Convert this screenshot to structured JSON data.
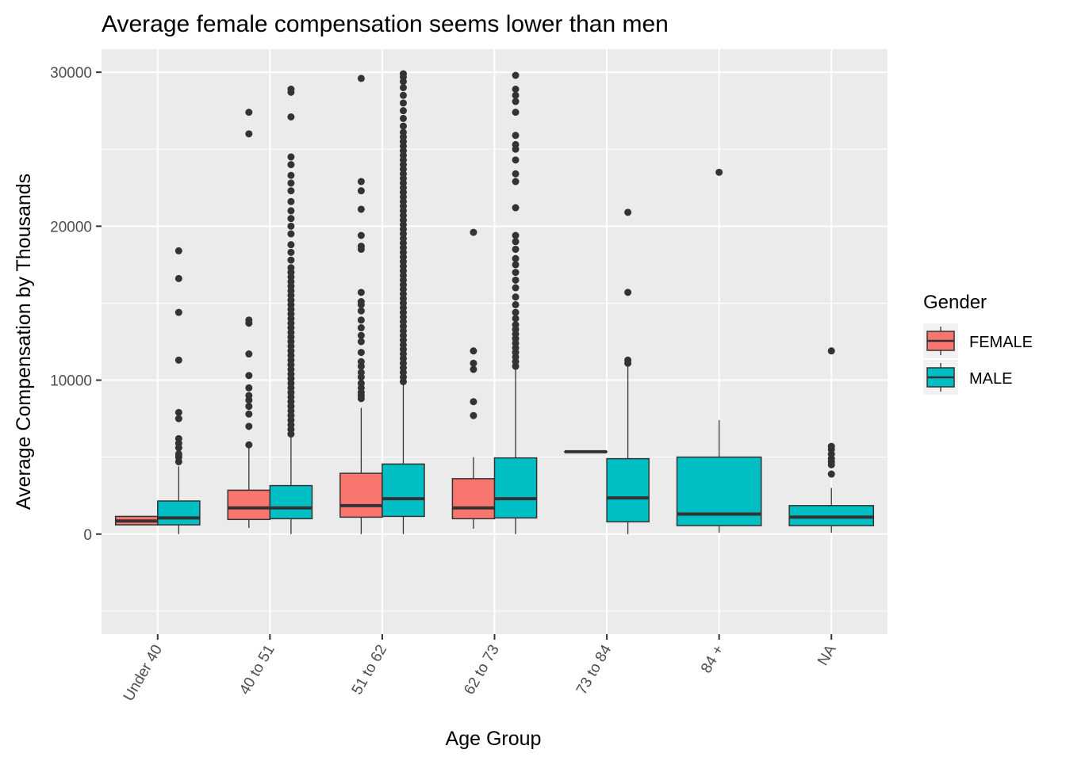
{
  "chart_data": {
    "type": "boxplot",
    "title": "Average female compensation seems lower than men",
    "xlabel": "Age Group",
    "ylabel": "Average Compensation by Thousands",
    "ylim": [
      -6500,
      31500
    ],
    "y_ticks": [
      0,
      10000,
      20000,
      30000
    ],
    "categories": [
      "Under 40",
      "40 to 51",
      "51 to 62",
      "62 to 73",
      "73 to 84",
      "84 +",
      "NA"
    ],
    "legend": {
      "title": "Gender",
      "position": "right",
      "items": [
        {
          "label": "FEMALE",
          "color": "#F8766D"
        },
        {
          "label": "MALE",
          "color": "#00BFC4"
        }
      ]
    },
    "grid": true,
    "panel_background": "#EBEBEB",
    "series": [
      {
        "name": "FEMALE",
        "color": "#F8766D",
        "boxes": [
          {
            "category": "Under 40",
            "whisker_low": 600,
            "q1": 600,
            "median": 850,
            "q3": 1150,
            "whisker_high": 1150,
            "outliers": []
          },
          {
            "category": "40 to 51",
            "whisker_low": 400,
            "q1": 950,
            "median": 1700,
            "q3": 2850,
            "whisker_high": 5700,
            "outliers": [
              5800,
              7000,
              7800,
              8300,
              8700,
              9000,
              9500,
              10300,
              11700,
              13700,
              13900,
              26000,
              27400
            ]
          },
          {
            "category": "51 to 62",
            "whisker_low": 0,
            "q1": 1100,
            "median": 1850,
            "q3": 3950,
            "whisker_high": 8200,
            "outliers": [
              8800,
              9000,
              9200,
              9500,
              9800,
              10200,
              10500,
              10900,
              11200,
              11800,
              12500,
              12900,
              13400,
              13900,
              14500,
              14900,
              15100,
              15700,
              18500,
              18700,
              19400,
              21100,
              22300,
              22900,
              29600
            ]
          },
          {
            "category": "62 to 73",
            "whisker_low": 350,
            "q1": 1000,
            "median": 1700,
            "q3": 3600,
            "whisker_high": 5000,
            "outliers": [
              7700,
              8600,
              10700,
              11100,
              11900,
              19600
            ]
          },
          {
            "category": "73 to 84",
            "whisker_low": 5350,
            "q1": 5350,
            "median": 5350,
            "q3": 5350,
            "whisker_high": 5350,
            "outliers": []
          }
        ]
      },
      {
        "name": "MALE",
        "color": "#00BFC4",
        "boxes": [
          {
            "category": "Under 40",
            "whisker_low": 0,
            "q1": 600,
            "median": 1050,
            "q3": 2150,
            "whisker_high": 4400,
            "outliers": [
              4700,
              5000,
              5200,
              5600,
              5900,
              6200,
              7500,
              7900,
              11300,
              14400,
              16600,
              18400
            ]
          },
          {
            "category": "40 to 51",
            "whisker_low": 0,
            "q1": 1000,
            "median": 1700,
            "q3": 3150,
            "whisker_high": 6300,
            "outliers": [
              6500,
              6800,
              7100,
              7400,
              7700,
              8000,
              8300,
              8600,
              8900,
              9200,
              9500,
              9800,
              10100,
              10400,
              10700,
              11000,
              11300,
              11600,
              11900,
              12200,
              12500,
              12800,
              13100,
              13400,
              13700,
              14000,
              14300,
              14600,
              14900,
              15200,
              15500,
              15800,
              16100,
              16400,
              16700,
              17000,
              17300,
              17800,
              18300,
              18800,
              19500,
              20000,
              20500,
              21000,
              21600,
              22300,
              22800,
              23300,
              24000,
              24500,
              27100,
              28700,
              28900
            ]
          },
          {
            "category": "51 to 62",
            "whisker_low": 0,
            "q1": 1150,
            "median": 2300,
            "q3": 4550,
            "whisker_high": 9700,
            "outliers": [
              9900,
              10200,
              10500,
              10800,
              11100,
              11400,
              11700,
              12000,
              12300,
              12600,
              12900,
              13200,
              13500,
              13800,
              14100,
              14400,
              14700,
              15000,
              15300,
              15600,
              15900,
              16200,
              16500,
              16800,
              17100,
              17400,
              17700,
              18000,
              18300,
              18600,
              18900,
              19200,
              19500,
              19800,
              20100,
              20400,
              20700,
              21000,
              21300,
              21600,
              21900,
              22200,
              22500,
              22800,
              23100,
              23400,
              23700,
              24000,
              24300,
              24600,
              24900,
              25200,
              25500,
              25800,
              26100,
              26500,
              27000,
              27500,
              28000,
              28500,
              29000,
              29400,
              29700,
              29900
            ]
          },
          {
            "category": "62 to 73",
            "whisker_low": 0,
            "q1": 1050,
            "median": 2300,
            "q3": 4950,
            "whisker_high": 10700,
            "outliers": [
              10900,
              11200,
              11500,
              11800,
              12100,
              12400,
              12700,
              13000,
              13300,
              13600,
              14000,
              14400,
              14900,
              15400,
              16000,
              16500,
              17000,
              17500,
              17900,
              18500,
              19000,
              19400,
              21200,
              22900,
              23400,
              24300,
              25000,
              25300,
              25900,
              27400,
              28100,
              28500,
              28900,
              29800
            ]
          },
          {
            "category": "73 to 84",
            "whisker_low": 0,
            "q1": 800,
            "median": 2350,
            "q3": 4900,
            "whisker_high": 11000,
            "outliers": [
              11100,
              11300,
              15700,
              20900
            ]
          },
          {
            "category": "84 +",
            "whisker_low": 100,
            "q1": 550,
            "median": 1300,
            "q3": 5000,
            "whisker_high": 7400,
            "outliers": [
              23500
            ]
          },
          {
            "category": "NA",
            "whisker_low": 100,
            "q1": 550,
            "median": 1100,
            "q3": 1850,
            "whisker_high": 3000,
            "outliers": [
              3900,
              4500,
              4700,
              4900,
              5200,
              5500,
              5700,
              11900
            ]
          }
        ]
      }
    ]
  }
}
